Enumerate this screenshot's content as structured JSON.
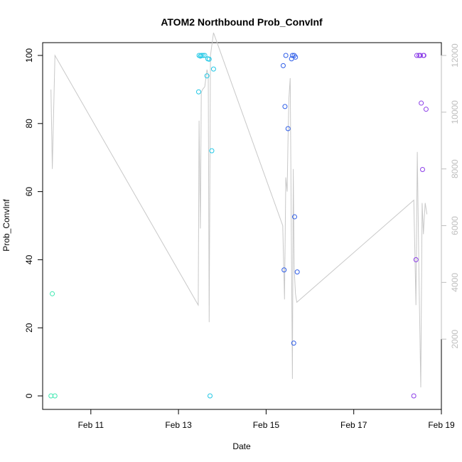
{
  "chart_data": {
    "type": "scatter",
    "title": "ATOM2 Northbound Prob_ConvInf",
    "xlabel": "Date",
    "ylabel": "Prob_ConvInf",
    "ylim": [
      0,
      100
    ],
    "y2lim": [
      0,
      12000
    ],
    "xlim_days": [
      9.9,
      19.0
    ],
    "x_ticks": [
      {
        "day": 11,
        "label": "Feb 11"
      },
      {
        "day": 13,
        "label": "Feb 13"
      },
      {
        "day": 15,
        "label": "Feb 15"
      },
      {
        "day": 17,
        "label": "Feb 17"
      },
      {
        "day": 19,
        "label": "Feb 19"
      }
    ],
    "y_ticks": [
      0,
      20,
      40,
      60,
      80,
      100
    ],
    "y2_ticks": [
      2000,
      4000,
      6000,
      8000,
      10000,
      12000
    ],
    "grid": false,
    "series": [
      {
        "color": "#3de8b0",
        "x": [
          10.09,
          10.12,
          10.18
        ],
        "y": [
          0,
          30,
          0
        ]
      },
      {
        "color": "#22c8e6",
        "x": [
          13.46,
          13.47,
          13.5,
          13.52,
          13.56,
          13.6,
          13.65,
          13.67,
          13.7,
          13.72,
          13.76,
          13.8
        ],
        "y": [
          89.3,
          100,
          99.8,
          100,
          100,
          100,
          94,
          99,
          98.9,
          0,
          72,
          96
        ]
      },
      {
        "color": "#2f5ee8",
        "x": [
          15.39,
          15.41,
          15.43,
          15.45,
          15.5,
          15.58,
          15.6,
          15.63,
          15.64,
          15.65,
          15.67,
          15.71
        ],
        "y": [
          97,
          37,
          85,
          100,
          78.5,
          99,
          100,
          15.5,
          100,
          52.6,
          99.5,
          36.4
        ]
      },
      {
        "color": "#8b3de8",
        "x": [
          18.37,
          18.42,
          18.44,
          18.49,
          18.52,
          18.54,
          18.57,
          18.59,
          18.6,
          18.65
        ],
        "y": [
          0,
          40,
          100,
          100,
          100,
          86,
          66.5,
          100,
          100,
          84.2
        ]
      }
    ],
    "line_series": {
      "color": "#c8c8c8",
      "axis": "right",
      "x": [
        10.09,
        10.12,
        10.18,
        13.45,
        13.47,
        13.5,
        13.52,
        13.55,
        13.6,
        13.65,
        13.68,
        13.7,
        13.73,
        13.8,
        15.38,
        15.42,
        15.45,
        15.48,
        15.5,
        15.52,
        15.55,
        15.6,
        15.62,
        15.64,
        15.67,
        15.7,
        18.37,
        18.42,
        18.45,
        18.49,
        18.53,
        18.56,
        18.59,
        18.6,
        18.63,
        18.67
      ],
      "y": [
        10800,
        8000,
        12000,
        3200,
        9700,
        5900,
        10700,
        10800,
        10900,
        11500,
        11300,
        2600,
        12000,
        12800,
        6000,
        3400,
        7700,
        7200,
        9000,
        10500,
        11200,
        600,
        8000,
        4500,
        3600,
        3300,
        6900,
        3200,
        8600,
        4000,
        300,
        6800,
        5700,
        6000,
        6800,
        6400
      ]
    }
  }
}
